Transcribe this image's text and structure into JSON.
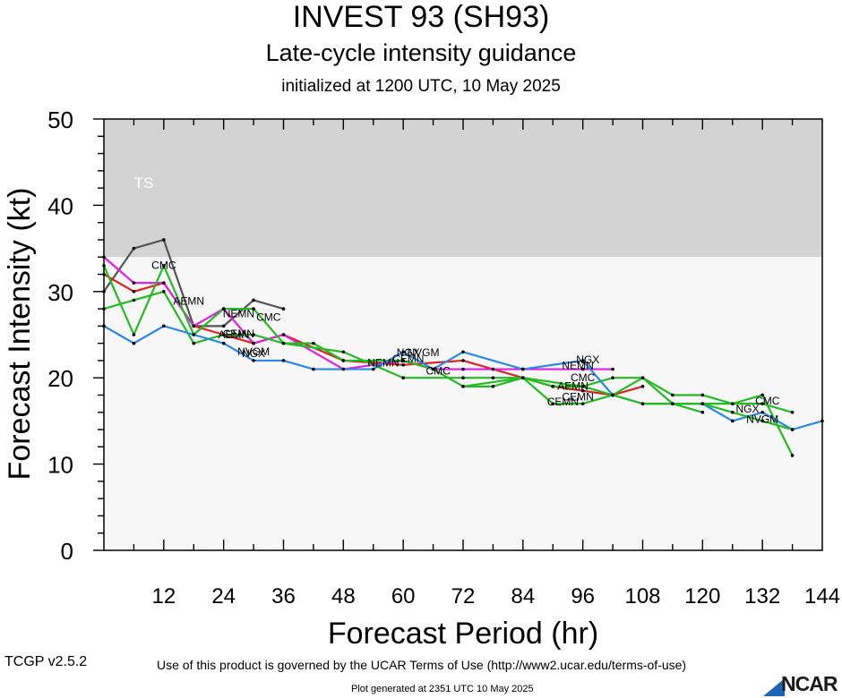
{
  "header": {
    "title": "INVEST 93 (SH93)",
    "subtitle": "Late-cycle intensity guidance",
    "init": "initialized at 1200 UTC, 10 May 2025"
  },
  "footer": {
    "terms": "Use of this product is governed by the UCAR Terms of Use (http://www2.ucar.edu/terms-of-use)",
    "version": "TCGP v2.5.2",
    "generated": "Plot generated at 2351 UTC   10 May 2025",
    "logo": "NCAR"
  },
  "chart_data": {
    "type": "line",
    "title": "INVEST 93 (SH93)",
    "xlabel": "Forecast Period (hr)",
    "ylabel": "Forecast Intensity (kt)",
    "xlim": [
      0,
      144
    ],
    "ylim": [
      0,
      50
    ],
    "xticks": [
      12,
      24,
      36,
      48,
      60,
      72,
      84,
      96,
      108,
      120,
      132,
      144
    ],
    "yticks": [
      0,
      10,
      20,
      30,
      40,
      50
    ],
    "grid": false,
    "legend": "none",
    "bands": [
      {
        "label": "TS",
        "ymin": 34,
        "ymax": 50,
        "color": "#d3d3d3"
      },
      {
        "label": "",
        "ymin": 0,
        "ymax": 34,
        "color": "#f7f7f7"
      }
    ],
    "series": [
      {
        "name": "CMC",
        "color": "#555555",
        "x": [
          0,
          6,
          12,
          18,
          24,
          30,
          36
        ],
        "y": [
          30,
          35,
          36,
          26,
          26,
          29,
          28
        ],
        "labels": [
          {
            "text": "CMC",
            "x": 12,
            "y": 32.6
          },
          {
            "text": "CMC",
            "x": 33,
            "y": 26.6
          }
        ]
      },
      {
        "name": "AEMN",
        "color": "#dd2222",
        "x": [
          0,
          6,
          12,
          18,
          24,
          30,
          36,
          48,
          60,
          72,
          78,
          90,
          96,
          102,
          108
        ],
        "y": [
          32,
          30,
          31,
          26,
          25,
          24,
          25,
          22,
          21.5,
          22,
          21,
          19,
          18.5,
          18,
          19
        ],
        "labels": [
          {
            "text": "AEMN",
            "x": 26,
            "y": 24.6
          },
          {
            "text": "AEMN",
            "x": 94,
            "y": 18.6
          }
        ]
      },
      {
        "name": "NVGM",
        "color": "#e020e0",
        "x": [
          0,
          6,
          12,
          18,
          24,
          30,
          36,
          48,
          60,
          66,
          72,
          84,
          96,
          102
        ],
        "y": [
          34,
          31,
          31,
          26,
          28,
          24,
          25,
          21,
          22,
          21,
          21,
          21,
          21,
          21
        ],
        "labels": [
          {
            "text": "NVGM",
            "x": 64,
            "y": 22.5
          }
        ]
      },
      {
        "name": "NEMN",
        "color": "#22bb22",
        "x": [
          0,
          6,
          12,
          18,
          24,
          30,
          36,
          48,
          60,
          72,
          78,
          84,
          90,
          96,
          102,
          108,
          114,
          120,
          126,
          132,
          138
        ],
        "y": [
          28,
          29,
          30,
          24,
          25,
          25,
          24,
          23,
          20,
          20,
          20,
          20,
          17,
          17,
          18,
          20,
          18,
          18,
          17,
          18,
          11
        ],
        "labels": [
          {
            "text": "NEMN",
            "x": 27,
            "y": 27
          },
          {
            "text": "NEMN",
            "x": 56,
            "y": 21.3
          },
          {
            "text": "NEMN",
            "x": 95,
            "y": 21
          }
        ]
      },
      {
        "name": "CEMN",
        "color": "#22bb22",
        "x": [
          0,
          6,
          12,
          18,
          24,
          30,
          36,
          42,
          48,
          60,
          66,
          72,
          84,
          96,
          102,
          108,
          114,
          120
        ],
        "y": [
          33,
          25,
          33,
          25,
          28,
          28,
          24,
          24,
          22,
          22,
          21,
          19,
          20,
          19,
          20,
          20,
          17,
          16
        ],
        "labels": [
          {
            "text": "CEMN",
            "x": 27,
            "y": 24.7
          },
          {
            "text": "CEMN",
            "x": 61,
            "y": 21.8
          },
          {
            "text": "CEMN",
            "x": 95,
            "y": 17.4
          }
        ]
      },
      {
        "name": "NGX",
        "color": "#2a88e6",
        "x": [
          0,
          6,
          12,
          18,
          24,
          30,
          36,
          42,
          54,
          60,
          66,
          72,
          84,
          96,
          102,
          108,
          120,
          126,
          132,
          138,
          144
        ],
        "y": [
          26,
          24,
          26,
          25,
          24,
          22,
          22,
          21,
          21,
          23,
          21,
          23,
          21,
          22,
          18,
          17,
          17,
          15,
          16,
          14,
          15
        ],
        "labels": [
          {
            "text": "NGX",
            "x": 30,
            "y": 22.4
          },
          {
            "text": "NGX",
            "x": 61,
            "y": 22.5
          },
          {
            "text": "NGX",
            "x": 97,
            "y": 21.7
          },
          {
            "text": "NGX",
            "x": 129,
            "y": 16
          }
        ]
      },
      {
        "name": "NVGM",
        "color": "#22bb22",
        "x": [
          72,
          78,
          84,
          90,
          96,
          102,
          108,
          114,
          120,
          126,
          132,
          138
        ],
        "y": [
          19,
          19,
          20,
          19,
          19,
          18,
          17,
          17,
          17,
          16,
          15,
          14
        ],
        "labels": [
          {
            "text": "NVGM",
            "x": 30,
            "y": 22.6
          },
          {
            "text": "NVGM",
            "x": 132,
            "y": 14.8
          }
        ]
      },
      {
        "name": "CMC",
        "color": "#22bb22",
        "x": [
          114,
          120,
          126,
          132,
          138
        ],
        "y": [
          17,
          17,
          17,
          17,
          16
        ],
        "labels": [
          {
            "text": "CMC",
            "x": 133,
            "y": 16.9
          },
          {
            "text": "CMC",
            "x": 67,
            "y": 20.4
          },
          {
            "text": "CMC",
            "x": 96,
            "y": 19.6
          }
        ]
      }
    ],
    "annotations": [
      {
        "text": "TS",
        "x": 8,
        "y": 42,
        "color": "#ffffff"
      },
      {
        "text": "AEMN",
        "x": 17,
        "y": 28.5
      },
      {
        "text": "CEMN",
        "x": 92,
        "y": 16.8
      }
    ]
  }
}
